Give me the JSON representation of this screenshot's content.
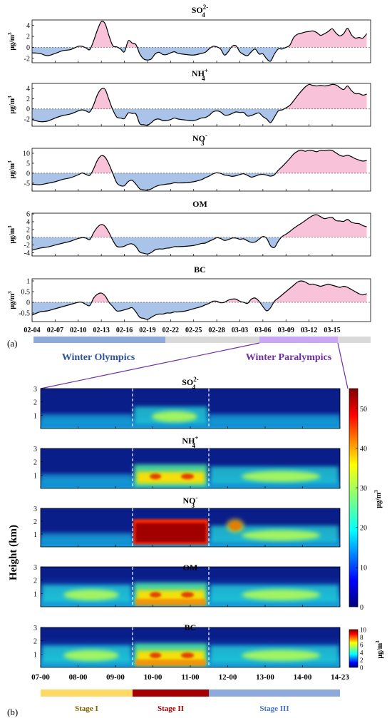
{
  "figure_labels": {
    "a": "(a)",
    "b": "(b)"
  },
  "events": {
    "olympics": "Winter Olympics",
    "paralympics": "Winter Paralympics",
    "colors": {
      "olympics_bar": "#8ea9db",
      "paralympics_bar": "#c9a7f5",
      "gap_bar": "#d9d9d9",
      "olympics_text": "#2f5597",
      "paralympics_text": "#7030a0",
      "connector": "#7030a0"
    }
  },
  "stages": [
    {
      "label": "Stage I",
      "color": "#ffd966",
      "text_color": "#7f6000"
    },
    {
      "label": "Stage II",
      "color": "#a50000",
      "text_color": "#ffffff"
    },
    {
      "label": "Stage III",
      "color": "#8ea9db",
      "text_color": "#4472c4"
    }
  ],
  "colors": {
    "positive_fill": "#f8c3d9",
    "negative_fill": "#a9c4e8",
    "line": "#000000"
  },
  "chart_data": [
    {
      "type": "area",
      "panel": "a",
      "species": "SO4",
      "title_base": "SO",
      "title_sup": "2-",
      "title_sub": "4",
      "ylabel": "μg/m3",
      "ylim": [
        -2.8,
        5
      ],
      "yticks": [
        -2,
        0,
        2,
        4
      ],
      "x_ticks": [
        "02-04",
        "02-07",
        "02-10",
        "02-13",
        "02-16",
        "02-19",
        "02-22",
        "02-25",
        "02-28",
        "03-03",
        "03-06",
        "03-09",
        "03-12",
        "03-15"
      ],
      "x_day_range": [
        0,
        44
      ],
      "x_days": [
        0,
        1,
        2,
        3,
        4,
        5,
        6,
        6.5,
        7,
        7.5,
        8,
        8.5,
        9,
        9.5,
        10,
        10.5,
        11,
        11.5,
        12,
        12.5,
        13,
        13.5,
        14,
        14.5,
        15,
        15.5,
        16,
        16.5,
        17,
        17.5,
        18,
        18.5,
        19,
        20,
        21,
        22,
        22.5,
        23,
        23.5,
        24,
        24.5,
        25,
        25.5,
        26,
        26.5,
        27,
        27.5,
        28,
        28.5,
        29,
        29.5,
        30,
        30.5,
        31,
        31.5,
        32,
        32.5,
        33,
        33.5,
        34,
        34.5,
        35,
        35.5,
        36,
        36.5,
        37,
        37.5,
        38,
        38.5,
        39,
        39.5,
        40,
        40.5,
        41,
        41.5,
        42,
        42.5,
        43,
        43.5
      ],
      "values": [
        -1,
        -1.1,
        -1.5,
        -1.1,
        -0.6,
        -0.4,
        0.2,
        0.2,
        -0.1,
        -0.4,
        1.2,
        3.2,
        4.7,
        4.3,
        2.1,
        0.3,
        0.1,
        -0.3,
        -0.8,
        1.2,
        0.8,
        0.5,
        -1.2,
        -2.1,
        -2.3,
        -2.1,
        -1.2,
        -0.9,
        -1.3,
        -1.3,
        -1.0,
        -0.8,
        -1.1,
        -1.3,
        -1.4,
        -1.1,
        -0.9,
        -0.3,
        0.2,
        0.1,
        -0.3,
        -1.4,
        -0.8,
        0.2,
        0.3,
        -0.8,
        -1.3,
        -1.5,
        -0.8,
        -0.3,
        -1.2,
        -1.2,
        -2.1,
        -2.5,
        -1.2,
        -0.3,
        -0.3,
        0,
        0.4,
        1.8,
        2.4,
        2.6,
        2.8,
        2.9,
        3.0,
        2.7,
        2.2,
        2.5,
        2.9,
        3.4,
        2.6,
        2.1,
        2.5,
        3.5,
        2.3,
        1.7,
        1.8,
        1.7,
        2.5
      ]
    },
    {
      "type": "area",
      "panel": "a",
      "species": "NH4",
      "title_base": "NH",
      "title_sup": "+",
      "title_sub": "4",
      "ylabel": "μg/m3",
      "ylim": [
        -3.4,
        5
      ],
      "yticks": [
        -2,
        0,
        2,
        4
      ],
      "x_ticks": [
        "02-04",
        "02-07",
        "02-10",
        "02-13",
        "02-16",
        "02-19",
        "02-22",
        "02-25",
        "02-28",
        "03-03",
        "03-06",
        "03-09",
        "03-12",
        "03-15"
      ],
      "x_day_range": [
        0,
        44
      ],
      "x_days": [
        0,
        1,
        2,
        3,
        4,
        5,
        6,
        6.5,
        7,
        7.5,
        8,
        8.5,
        9,
        9.5,
        10,
        10.5,
        11,
        11.5,
        12,
        12.5,
        13,
        13.5,
        14,
        14.5,
        15,
        15.5,
        16,
        16.5,
        17,
        17.5,
        18,
        18.5,
        19,
        20,
        21,
        22,
        22.5,
        23,
        23.5,
        24,
        24.5,
        25,
        25.5,
        26,
        26.5,
        27,
        27.5,
        28,
        28.5,
        29,
        29.5,
        30,
        30.5,
        31,
        31.5,
        32,
        32.5,
        33,
        33.5,
        34,
        34.5,
        35,
        35.5,
        36,
        36.5,
        37,
        37.5,
        38,
        38.5,
        39,
        39.5,
        40,
        40.5,
        41,
        41.5,
        42,
        42.5,
        43,
        43.5
      ],
      "values": [
        -2.1,
        -2.5,
        -2.4,
        -1.8,
        -1.3,
        -1,
        -0.4,
        -0.2,
        -0.4,
        -0.6,
        0.8,
        2.8,
        3.9,
        3.8,
        1.8,
        -0.2,
        -1.6,
        -1.8,
        -1.9,
        -0.8,
        -0.9,
        -1.0,
        -2.9,
        -3.1,
        -3.2,
        -2.7,
        -2.1,
        -2.0,
        -2.3,
        -2.3,
        -2.1,
        -1.8,
        -2.0,
        -2.2,
        -2.3,
        -1.8,
        -1.7,
        -1.3,
        -0.6,
        -0.4,
        -0.6,
        -1.2,
        -1.2,
        -0.9,
        -0.6,
        -0.7,
        -0.7,
        -1.4,
        -1.3,
        -1.0,
        -0.8,
        -1.5,
        -2.0,
        -2.7,
        -1.6,
        -0.4,
        -0.2,
        0.2,
        0.7,
        1.6,
        2.6,
        3.5,
        4.3,
        4.8,
        4.6,
        4.5,
        4.6,
        4.5,
        4.6,
        4.8,
        4.7,
        4.2,
        3.8,
        4.5,
        3.6,
        3.0,
        3.0,
        2.7,
        2.9
      ]
    },
    {
      "type": "area",
      "panel": "a",
      "species": "NO3",
      "title_base": "NO",
      "title_sup": "-",
      "title_sub": "3",
      "ylabel": "μg/m3",
      "ylim": [
        -9,
        12.5
      ],
      "yticks": [
        -5,
        0,
        5,
        10
      ],
      "x_ticks": [
        "02-04",
        "02-07",
        "02-10",
        "02-13",
        "02-16",
        "02-19",
        "02-22",
        "02-25",
        "02-28",
        "03-03",
        "03-06",
        "03-09",
        "03-12",
        "03-15"
      ],
      "x_day_range": [
        0,
        44
      ],
      "x_days": [
        0,
        1,
        2,
        3,
        4,
        5,
        6,
        6.5,
        7,
        7.5,
        8,
        8.5,
        9,
        9.5,
        10,
        10.5,
        11,
        11.5,
        12,
        12.5,
        13,
        13.5,
        14,
        14.5,
        15,
        15.5,
        16,
        16.5,
        17,
        17.5,
        18,
        18.5,
        19,
        20,
        21,
        22,
        22.5,
        23,
        23.5,
        24,
        24.5,
        25,
        25.5,
        26,
        26.5,
        27,
        27.5,
        28,
        28.5,
        29,
        29.5,
        30,
        30.5,
        31,
        31.5,
        32,
        32.5,
        33,
        33.5,
        34,
        34.5,
        35,
        35.5,
        36,
        36.5,
        37,
        37.5,
        38,
        38.5,
        39,
        39.5,
        40,
        40.5,
        41,
        41.5,
        42,
        42.5,
        43,
        43.5
      ],
      "values": [
        -5.5,
        -5.8,
        -5.1,
        -4.3,
        -3.1,
        -2.3,
        -0.8,
        0.1,
        -0.6,
        -1.1,
        2.2,
        6.5,
        8.8,
        8,
        4.5,
        -0.2,
        -4.8,
        -6.3,
        -6.3,
        -4.2,
        -3.6,
        -5.5,
        -7.9,
        -8.4,
        -8.5,
        -7.9,
        -6.8,
        -6.1,
        -5.8,
        -5.5,
        -5.3,
        -4.8,
        -4.9,
        -4.8,
        -4.3,
        -3.3,
        -2.3,
        -1.5,
        -0.4,
        0.2,
        -0.1,
        -0.9,
        -1.2,
        -1.6,
        -1.3,
        -0.7,
        -0.3,
        -1.1,
        -2.0,
        -1.5,
        -0.8,
        -0.6,
        -1.0,
        -1.5,
        -0.8,
        1.5,
        3.3,
        5.3,
        7.4,
        9.6,
        11.0,
        11.6,
        11.0,
        11.5,
        11.3,
        10.8,
        11.5,
        11.3,
        11.6,
        11.4,
        10.2,
        9.0,
        8.5,
        9.0,
        8.3,
        7.3,
        6.6,
        6.1,
        6.4
      ]
    },
    {
      "type": "area",
      "panel": "a",
      "species": "OM",
      "title_base": "OM",
      "title_sup": "",
      "title_sub": "",
      "ylabel": "μg/m3",
      "ylim": [
        -4.8,
        6.2
      ],
      "yticks": [
        -4,
        -2,
        0,
        2,
        4,
        6
      ],
      "x_ticks": [
        "02-04",
        "02-07",
        "02-10",
        "02-13",
        "02-16",
        "02-19",
        "02-22",
        "02-25",
        "02-28",
        "03-03",
        "03-06",
        "03-09",
        "03-12",
        "03-15"
      ],
      "x_day_range": [
        0,
        44
      ],
      "x_days": [
        0,
        1,
        2,
        3,
        4,
        5,
        6,
        6.5,
        7,
        7.5,
        8,
        8.5,
        9,
        9.5,
        10,
        10.5,
        11,
        11.5,
        12,
        12.5,
        13,
        13.5,
        14,
        14.5,
        15,
        15.5,
        16,
        16.5,
        17,
        17.5,
        18,
        18.5,
        19,
        20,
        21,
        22,
        22.5,
        23,
        23.5,
        24,
        24.5,
        25,
        25.5,
        26,
        26.5,
        27,
        27.5,
        28,
        28.5,
        29,
        29.5,
        30,
        30.5,
        31,
        31.5,
        32,
        32.5,
        33,
        33.5,
        34,
        34.5,
        35,
        35.5,
        36,
        36.5,
        37,
        37.5,
        38,
        38.5,
        39,
        39.5,
        40,
        40.5,
        41,
        41.5,
        42,
        42.5,
        43,
        43.5
      ],
      "values": [
        -3.3,
        -2.8,
        -2.5,
        -2.0,
        -1.5,
        -1.0,
        -0.3,
        -0.1,
        -0.2,
        -0.6,
        1.2,
        2.6,
        3.3,
        2.8,
        1.2,
        -0.8,
        -2.3,
        -2.5,
        -2.3,
        -1.8,
        -1.7,
        -2.4,
        -3.8,
        -4.1,
        -4.3,
        -3.9,
        -3.2,
        -3.0,
        -3.0,
        -2.8,
        -2.7,
        -2.4,
        -2.4,
        -2.3,
        -2.1,
        -1.6,
        -1.5,
        -1.0,
        -0.6,
        -0.1,
        -0.3,
        -0.8,
        -0.6,
        -0.2,
        -0.2,
        -0.5,
        -0.4,
        -0.9,
        -1.3,
        -1.2,
        -0.5,
        0.2,
        -0.3,
        -2.2,
        -2.6,
        -1.0,
        0.2,
        0.8,
        1.5,
        2.3,
        3.0,
        3.6,
        4.3,
        5.0,
        5.6,
        5.8,
        5.3,
        4.8,
        5.0,
        5.1,
        4.3,
        4.2,
        4.1,
        4.6,
        3.9,
        3.6,
        3.5,
        3.0,
        2.7
      ]
    },
    {
      "type": "area",
      "panel": "a",
      "species": "BC",
      "title_base": "BC",
      "title_sup": "",
      "title_sub": "",
      "ylabel": "μg/m3",
      "ylim": [
        -0.9,
        1.1
      ],
      "yticks": [
        -0.5,
        0,
        0.5,
        1
      ],
      "x_ticks": [
        "02-04",
        "02-07",
        "02-10",
        "02-13",
        "02-16",
        "02-19",
        "02-22",
        "02-25",
        "02-28",
        "03-03",
        "03-06",
        "03-09",
        "03-12",
        "03-15"
      ],
      "x_day_range": [
        0,
        44
      ],
      "x_days": [
        0,
        1,
        2,
        3,
        4,
        5,
        6,
        6.5,
        7,
        7.5,
        8,
        8.5,
        9,
        9.5,
        10,
        10.5,
        11,
        11.5,
        12,
        12.5,
        13,
        13.5,
        14,
        14.5,
        15,
        15.5,
        16,
        16.5,
        17,
        17.5,
        18,
        18.5,
        19,
        20,
        21,
        22,
        22.5,
        23,
        23.5,
        24,
        24.5,
        25,
        25.5,
        26,
        26.5,
        27,
        27.5,
        28,
        28.5,
        29,
        29.5,
        30,
        30.5,
        31,
        31.5,
        32,
        32.5,
        33,
        33.5,
        34,
        34.5,
        35,
        35.5,
        36,
        36.5,
        37,
        37.5,
        38,
        38.5,
        39,
        39.5,
        40,
        40.5,
        41,
        41.5,
        42,
        42.5,
        43,
        43.5
      ],
      "values": [
        -0.6,
        -0.45,
        -0.4,
        -0.3,
        -0.2,
        -0.1,
        0,
        0,
        -0.1,
        -0.15,
        0.2,
        0.38,
        0.43,
        0.3,
        0,
        -0.2,
        -0.4,
        -0.4,
        -0.35,
        -0.3,
        -0.25,
        -0.45,
        -0.7,
        -0.75,
        -0.8,
        -0.7,
        -0.6,
        -0.55,
        -0.55,
        -0.5,
        -0.5,
        -0.45,
        -0.45,
        -0.4,
        -0.3,
        -0.2,
        -0.12,
        -0.05,
        0.05,
        0.05,
        -0.02,
        0,
        0.1,
        0.15,
        0.15,
        0.05,
        0,
        -0.05,
        0.15,
        0.2,
        0.05,
        -0.2,
        -0.4,
        -0.25,
        0.05,
        0.2,
        0.35,
        0.5,
        0.65,
        0.8,
        0.95,
        1.0,
        0.95,
        0.85,
        0.85,
        0.8,
        0.75,
        0.8,
        0.85,
        0.8,
        0.75,
        0.7,
        0.75,
        0.7,
        0.6,
        0.5,
        0.4,
        0.35,
        0.4
      ]
    },
    {
      "type": "heatmap",
      "panel": "b",
      "ylabel": "Height (km)",
      "x_ticks": [
        "07-00",
        "08-00",
        "09-00",
        "10-00",
        "11-00",
        "12-00",
        "13-00",
        "14-00",
        "14-23"
      ],
      "yticks": [
        1,
        2,
        3
      ],
      "ylim": [
        0,
        3
      ],
      "stage_boundaries": [
        "09-12",
        "11-12"
      ],
      "colorbar_main": {
        "ylabel": "μg/m3",
        "range": [
          0,
          55
        ],
        "ticks": [
          0,
          10,
          20,
          30,
          40,
          50
        ]
      },
      "colorbar_bc": {
        "ylabel": "μg/m3",
        "range": [
          0,
          10
        ],
        "ticks": [
          0,
          2,
          4,
          6,
          8,
          10
        ]
      },
      "panels": [
        {
          "species": "SO4",
          "title_base": "SO",
          "title_sup": "2-",
          "title_sub": "4",
          "level_by_stage": [
            "low",
            "moderate",
            "low"
          ]
        },
        {
          "species": "NH4",
          "title_base": "NH",
          "title_sup": "+",
          "title_sub": "4",
          "level_by_stage": [
            "low",
            "high",
            "moderate"
          ]
        },
        {
          "species": "NO3",
          "title_base": "NO",
          "title_sup": "-",
          "title_sub": "3",
          "level_by_stage": [
            "low",
            "very high",
            "moderate"
          ]
        },
        {
          "species": "OM",
          "title_base": "OM",
          "title_sup": "",
          "title_sub": "",
          "level_by_stage": [
            "moderate",
            "high",
            "moderate"
          ]
        },
        {
          "species": "BC",
          "title_base": "BC",
          "title_sup": "",
          "title_sub": "",
          "level_by_stage": [
            "moderate",
            "high",
            "moderate"
          ]
        }
      ]
    }
  ]
}
